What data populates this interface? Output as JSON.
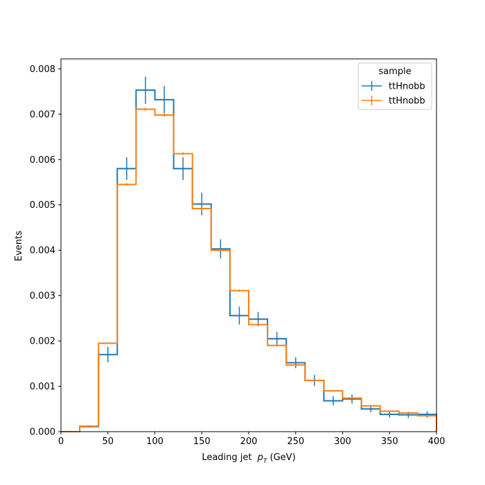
{
  "chart_data": {
    "type": "step",
    "xlabel": "Leading jet  p_T (GeV)",
    "xlabel_main": "Leading jet ",
    "xlabel_p": "p",
    "xlabel_sub": "T",
    "xlabel_unit": " (GeV)",
    "ylabel": "Events",
    "xlim": [
      0,
      400
    ],
    "ylim": [
      0,
      0.00822
    ],
    "xticks": [
      0,
      50,
      100,
      150,
      200,
      250,
      300,
      350,
      400
    ],
    "yticks": [
      0.0,
      0.001,
      0.002,
      0.003,
      0.004,
      0.005,
      0.006,
      0.007,
      0.008
    ],
    "ytick_labels": [
      "0.000",
      "0.001",
      "0.002",
      "0.003",
      "0.004",
      "0.005",
      "0.006",
      "0.007",
      "0.008"
    ],
    "grid": false,
    "legend": {
      "title": "sample",
      "placement": "top-right"
    },
    "bin_edges": [
      0,
      20,
      40,
      60,
      80,
      100,
      120,
      140,
      160,
      180,
      200,
      220,
      240,
      260,
      280,
      300,
      320,
      340,
      360,
      380,
      400
    ],
    "series": [
      {
        "name": "ttHnobb",
        "color": "#1f77b4",
        "values": [
          0.0,
          0.00011,
          0.0017,
          0.0058,
          0.00753,
          0.00732,
          0.0058,
          0.00502,
          0.00403,
          0.00256,
          0.00248,
          0.00205,
          0.00152,
          0.00113,
          0.00068,
          0.00072,
          0.0005,
          0.00038,
          0.00037,
          0.00038
        ],
        "errors": [
          0.0,
          2e-05,
          0.00017,
          0.00025,
          0.0003,
          0.0003,
          0.00025,
          0.00025,
          0.00021,
          0.0002,
          0.00016,
          0.00015,
          0.00012,
          0.00012,
          0.0001,
          0.0001,
          7e-05,
          7e-05,
          7e-05,
          7e-05
        ]
      },
      {
        "name": "ttHnobb",
        "color": "#ff7f0e",
        "values": [
          0.0,
          0.00012,
          0.00195,
          0.00545,
          0.00711,
          0.00698,
          0.00613,
          0.00492,
          0.004,
          0.00311,
          0.00236,
          0.0019,
          0.00147,
          0.00113,
          0.0009,
          0.00074,
          0.00057,
          0.00045,
          0.00041,
          0.00035
        ],
        "errors": [
          0.0,
          5e-06,
          1.5e-05,
          3e-05,
          3.5e-05,
          3.5e-05,
          3e-05,
          3e-05,
          2.5e-05,
          2.5e-05,
          2e-05,
          2e-05,
          1.5e-05,
          1.5e-05,
          1.2e-05,
          1e-05,
          1e-05,
          1e-05,
          1e-05,
          1e-05
        ]
      }
    ]
  }
}
